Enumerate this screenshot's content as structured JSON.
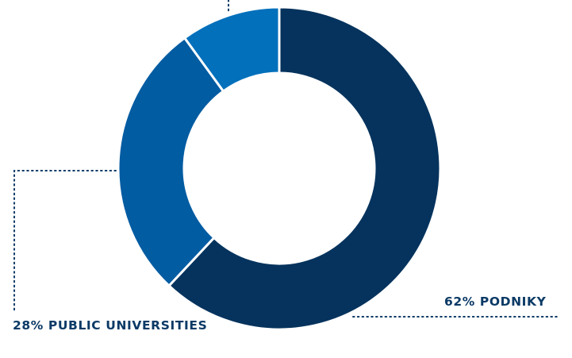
{
  "chart_data": {
    "type": "pie",
    "donut": true,
    "title": "",
    "slices": [
      {
        "label": "62% PODNIKY",
        "value": 62,
        "color": "#05335d"
      },
      {
        "label": "28% PUBLIC UNIVERSITIES",
        "value": 28,
        "color": "#025ca2"
      },
      {
        "label": "",
        "value": 10,
        "color": "#0270bb"
      }
    ],
    "label_color": "#0b3a66",
    "leader_color": "#0b3a66"
  }
}
